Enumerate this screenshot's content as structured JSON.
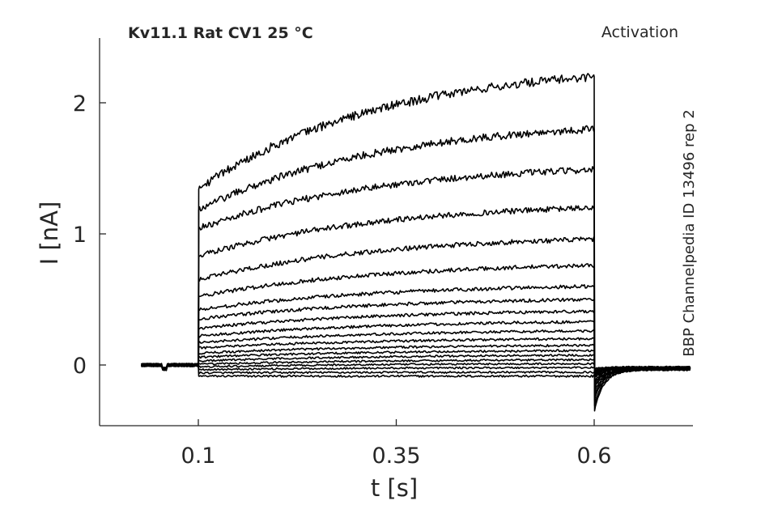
{
  "chart_data": {
    "type": "line",
    "title": "Kv11.1  Rat  CV1  25 °C",
    "subtitle": "Activation",
    "side_label": "BBP Channelpedia ID 13496 rep 2",
    "xlabel": "t [s]",
    "ylabel": "I [nA]",
    "xlim": [
      0.0,
      0.75
    ],
    "ylim": [
      -0.47,
      2.5
    ],
    "xticks": [
      0.1,
      0.35,
      0.6
    ],
    "xtick_labels": [
      "0.1",
      "0.35",
      "0.6"
    ],
    "yticks": [
      0,
      1,
      2
    ],
    "ytick_labels": [
      "0",
      "1",
      "2"
    ],
    "grid": false,
    "line_color": "#000000",
    "step_start_s": 0.1,
    "step_end_s": 0.6,
    "record_start_s": 0.028,
    "record_end_s": 0.722,
    "series": [
      {
        "onset": -0.085,
        "end": -0.085,
        "tail": -0.03
      },
      {
        "onset": -0.06,
        "end": -0.055,
        "tail": -0.035
      },
      {
        "onset": -0.035,
        "end": -0.02,
        "tail": -0.04
      },
      {
        "onset": -0.015,
        "end": 0.01,
        "tail": -0.045
      },
      {
        "onset": 0.005,
        "end": 0.04,
        "tail": -0.05
      },
      {
        "onset": 0.03,
        "end": 0.075,
        "tail": -0.055
      },
      {
        "onset": 0.06,
        "end": 0.11,
        "tail": -0.06
      },
      {
        "onset": 0.09,
        "end": 0.15,
        "tail": -0.07
      },
      {
        "onset": 0.13,
        "end": 0.2,
        "tail": -0.08
      },
      {
        "onset": 0.17,
        "end": 0.26,
        "tail": -0.09
      },
      {
        "onset": 0.22,
        "end": 0.33,
        "tail": -0.1
      },
      {
        "onset": 0.28,
        "end": 0.41,
        "tail": -0.12
      },
      {
        "onset": 0.35,
        "end": 0.5,
        "tail": -0.14
      },
      {
        "onset": 0.42,
        "end": 0.6,
        "tail": -0.16
      },
      {
        "onset": 0.52,
        "end": 0.76,
        "tail": -0.18
      },
      {
        "onset": 0.65,
        "end": 0.96,
        "tail": -0.21
      },
      {
        "onset": 0.83,
        "end": 1.2,
        "tail": -0.24
      },
      {
        "onset": 1.04,
        "end": 1.49,
        "tail": -0.27
      },
      {
        "onset": 1.18,
        "end": 1.8,
        "tail": -0.31
      },
      {
        "onset": 1.34,
        "end": 2.2,
        "tail": -0.35
      }
    ]
  }
}
